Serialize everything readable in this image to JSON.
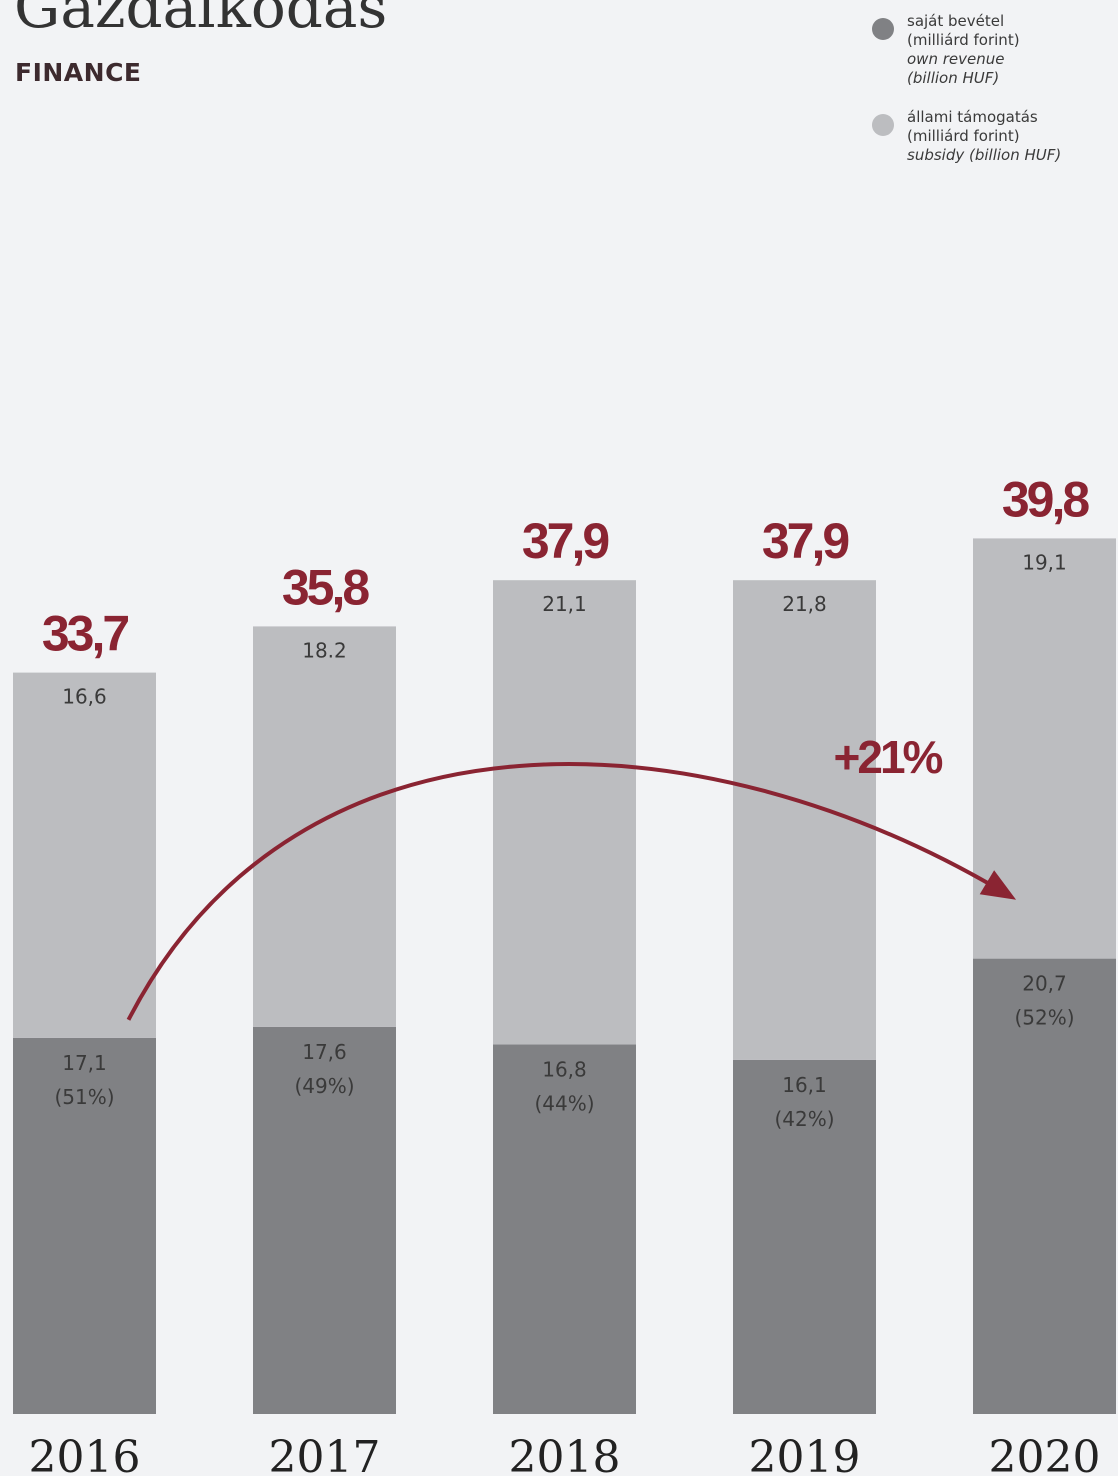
{
  "title": "Gazdálkodás",
  "subtitle": "FINANCE",
  "legend": [
    {
      "lines": [
        "saját bevétel",
        "(milliárd forint)",
        "own revenue",
        "(billion HUF)"
      ],
      "italic_from": 2,
      "color_key": "own_revenue"
    },
    {
      "lines": [
        "állami támogatás",
        "(milliárd forint)",
        "subsidy (billion HUF)"
      ],
      "italic_from": 2,
      "color_key": "subsidy"
    }
  ],
  "colors": {
    "own_revenue": "#808184",
    "subsidy": "#bcbdc0",
    "accent": "#8a2432",
    "background": "#f2f3f5"
  },
  "chart_data": {
    "type": "bar",
    "stacked": true,
    "categories": [
      "2016",
      "2017",
      "2018",
      "2019",
      "2020"
    ],
    "series": [
      {
        "name": "saját bevétel (milliárd forint) own revenue (billion HUF)",
        "color_key": "own_revenue",
        "values": [
          17.1,
          17.6,
          16.8,
          16.1,
          20.7
        ],
        "labels": [
          "17,1",
          "17,6",
          "16,8",
          "16,1",
          "20,7"
        ],
        "share_labels": [
          "(51%)",
          "(49%)",
          "(44%)",
          "(42%)",
          "(52%)"
        ]
      },
      {
        "name": "állami támogatás (milliárd forint) subsidy (billion HUF)",
        "color_key": "subsidy",
        "values": [
          16.6,
          18.2,
          21.1,
          21.8,
          19.1
        ],
        "labels": [
          "16,6",
          "18.2",
          "21,1",
          "21,8",
          "19,1"
        ]
      }
    ],
    "totals": [
      33.7,
      35.8,
      37.9,
      37.9,
      39.8
    ],
    "total_labels": [
      "33,7",
      "35,8",
      "37,9",
      "37,9",
      "39,8"
    ],
    "annotation": {
      "text": "+21%",
      "from_category": "2016",
      "to_category": "2020"
    },
    "ylim": [
      0,
      40
    ],
    "grid": false
  }
}
